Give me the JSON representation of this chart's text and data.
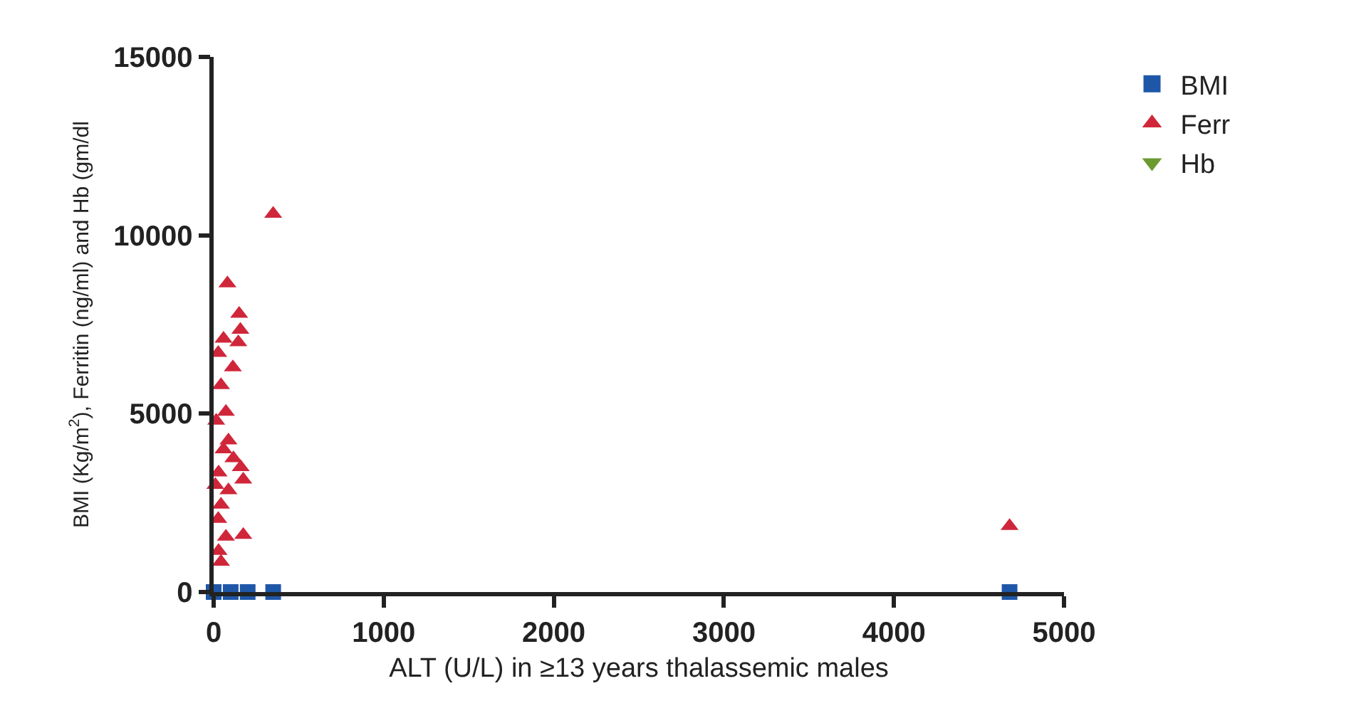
{
  "chart_data": {
    "type": "scatter",
    "xlabel": "ALT (U/L) in ≥13 years thalassemic males",
    "ylabel": "BMI (Kg/m$^{2}$), Ferritin (ng/ml) and Hb (gm/dl",
    "xlim": [
      0,
      5000
    ],
    "xticks": [
      0,
      1000,
      2000,
      3000,
      4000,
      5000
    ],
    "ylim": [
      0,
      15000
    ],
    "yticks": [
      0,
      5000,
      10000,
      15000
    ],
    "legend": "top right",
    "series": [
      {
        "name": "BMI",
        "color": "#1f57a8",
        "marker": "square",
        "x": [
          0,
          100,
          200,
          350,
          4680
        ],
        "values": [
          0,
          0,
          0,
          0,
          0
        ]
      },
      {
        "name": "Ferr",
        "color": "#d0263a",
        "marker": "triangle",
        "x": [
          350,
          81,
          150,
          157,
          58,
          145,
          27,
          113,
          43,
          72,
          15,
          87,
          58,
          116,
          159,
          29,
          174,
          10,
          87,
          43,
          27,
          174,
          72,
          29,
          43,
          4680
        ],
        "values": [
          10600,
          8650,
          7800,
          7350,
          7100,
          7000,
          6700,
          6300,
          5800,
          5050,
          4800,
          4250,
          4000,
          3750,
          3500,
          3350,
          3150,
          3000,
          2850,
          2450,
          2050,
          1600,
          1550,
          1150,
          850,
          1850
        ]
      },
      {
        "name": "Hb",
        "color": "#6b9a2e",
        "marker": "triangle-down"
      }
    ]
  }
}
